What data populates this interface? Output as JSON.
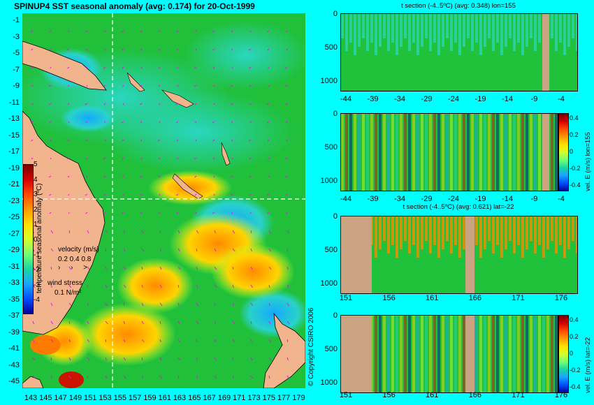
{
  "title": "SPINUP4 SST seasonal anomaly (avg: 0.174) for 20-Oct-1999",
  "colors": {
    "background": "#00FFFF",
    "land": "#F2B48C",
    "ocean_green": "#21C23B",
    "section_land": "#C9A382",
    "arrows": "#FF00FF"
  },
  "map": {
    "lat_ticks": [
      "-1",
      "-3",
      "-5",
      "-7",
      "-9",
      "-11",
      "-13",
      "-15",
      "-17",
      "-19",
      "-21",
      "-23",
      "-25",
      "-27",
      "-29",
      "-31",
      "-33",
      "-35",
      "-37",
      "-39",
      "-41",
      "-43",
      "-45"
    ],
    "lon_ticks": [
      "143",
      "145",
      "147",
      "149",
      "151",
      "153",
      "155",
      "157",
      "159",
      "161",
      "163",
      "165",
      "167",
      "169",
      "171",
      "173",
      "175",
      "177",
      "179"
    ],
    "section_lat": -22,
    "section_lon": 155,
    "colorbar": {
      "label": "temperature seasonal anomaly (ºC)",
      "ticks": [
        "5",
        "4",
        "3",
        "2",
        "1",
        "0",
        "-1",
        "-2",
        "-3",
        "-4"
      ]
    },
    "velocity_legend": {
      "label": "velocity (m/s)",
      "scale": "0.2 0.4 0.8"
    },
    "wind_legend": {
      "label": "wind stress",
      "scale": "0.1 N/m²"
    },
    "copyright": "© Copyright CSIRO 2006"
  },
  "panels": [
    {
      "title": "t section (-4..5ºC) (avg: 0.348) lon=155",
      "x_ticks": [
        "-44",
        "-39",
        "-34",
        "-29",
        "-24",
        "-19",
        "-14",
        "-9",
        "-4"
      ],
      "y_ticks": [
        "0",
        "500",
        "1000"
      ]
    },
    {
      "title": "",
      "x_ticks": [
        "-44",
        "-39",
        "-34",
        "-29",
        "-24",
        "-19",
        "-14",
        "-9",
        "-4"
      ],
      "y_ticks": [
        "0",
        "500",
        "1000"
      ],
      "colorbar_label": "vel. E (m/s) lon=155",
      "cbar_ticks": [
        "0.4",
        "0.2",
        "0",
        "-0.2",
        "-0.4"
      ]
    },
    {
      "title": "t section (-4..5ºC) (avg: 0.621) lat=-22",
      "x_ticks": [
        "151",
        "156",
        "161",
        "166",
        "171",
        "176"
      ],
      "y_ticks": [
        "0",
        "500",
        "1000"
      ]
    },
    {
      "title": "",
      "x_ticks": [
        "151",
        "156",
        "161",
        "166",
        "171",
        "176"
      ],
      "y_ticks": [
        "0",
        "500",
        "1000"
      ],
      "colorbar_label": "vel. E (m/s) lat=-22",
      "cbar_ticks": [
        "0.4",
        "0.2",
        "0",
        "-0.2",
        "-0.4"
      ]
    }
  ]
}
